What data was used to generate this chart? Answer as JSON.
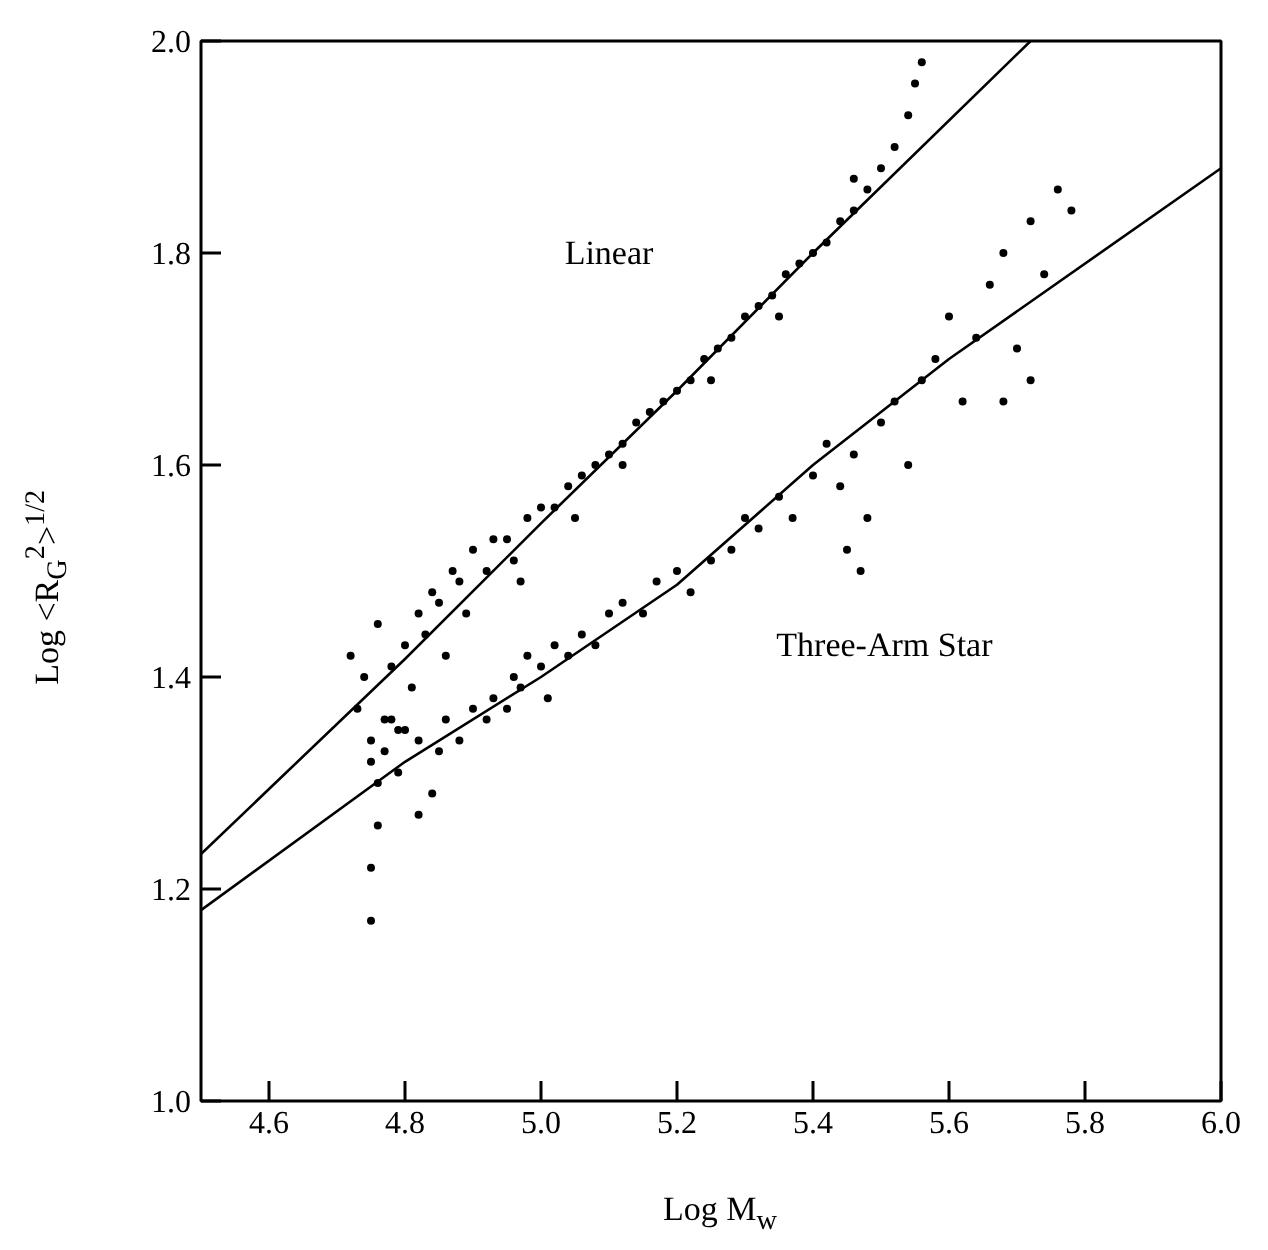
{
  "chart_data": {
    "type": "scatter",
    "xlabel": "Log M$_{w}$",
    "ylabel": "Log <R$_{G}$$^{2}$>$^{1/2}$",
    "xlim": [
      4.5,
      6.0
    ],
    "ylim": [
      1.0,
      2.0
    ],
    "xticks": [
      4.6,
      4.8,
      {
        "value": 5.0,
        "label": "5.0"
      },
      5.2,
      5.4,
      5.6,
      5.8,
      {
        "value": 6.0,
        "label": "6.0"
      }
    ],
    "yticks": [
      {
        "value": 1.0,
        "label": "1.0"
      },
      1.2,
      1.4,
      1.6,
      1.8,
      {
        "value": 2.0,
        "label": "2.0"
      }
    ],
    "grid": false,
    "marker": "circle",
    "annotations": [
      "Linear",
      "Three-Arm Star"
    ],
    "series": [
      {
        "color": "#000000",
        "x": [
          4.72,
          4.73,
          4.74,
          4.75,
          4.76,
          4.77,
          4.78,
          4.79,
          4.8,
          4.81,
          4.82,
          4.83,
          4.84,
          4.85,
          4.86,
          4.87,
          4.88,
          4.89,
          4.9,
          4.92,
          4.93,
          4.95,
          4.96,
          4.98,
          5.0,
          5.02,
          5.04,
          5.06,
          5.08,
          5.1,
          5.12,
          5.14,
          5.16,
          5.18,
          5.2,
          5.22,
          5.24,
          5.26,
          5.28,
          5.3,
          5.32,
          5.34,
          5.36,
          5.38,
          5.4,
          5.42,
          5.44,
          5.46,
          5.48,
          5.5,
          5.52,
          5.54,
          5.55,
          5.56,
          5.12,
          5.25,
          5.05,
          4.97,
          5.35,
          5.46
        ],
        "values": [
          1.42,
          1.37,
          1.4,
          1.32,
          1.45,
          1.36,
          1.41,
          1.35,
          1.43,
          1.39,
          1.46,
          1.44,
          1.48,
          1.47,
          1.42,
          1.5,
          1.49,
          1.46,
          1.52,
          1.5,
          1.53,
          1.53,
          1.51,
          1.55,
          1.56,
          1.56,
          1.58,
          1.59,
          1.6,
          1.61,
          1.62,
          1.64,
          1.65,
          1.66,
          1.67,
          1.68,
          1.7,
          1.71,
          1.72,
          1.74,
          1.75,
          1.76,
          1.78,
          1.79,
          1.8,
          1.81,
          1.83,
          1.84,
          1.86,
          1.88,
          1.9,
          1.93,
          1.96,
          1.98,
          1.6,
          1.68,
          1.55,
          1.49,
          1.74,
          1.87
        ]
      },
      {
        "color": "#000000",
        "x": [
          4.75,
          4.75,
          4.76,
          4.76,
          4.75,
          4.77,
          4.78,
          4.79,
          4.8,
          4.82,
          4.82,
          4.84,
          4.85,
          4.86,
          4.88,
          4.9,
          4.92,
          4.93,
          4.95,
          4.96,
          4.97,
          4.98,
          5.0,
          5.01,
          5.02,
          5.04,
          5.06,
          5.08,
          5.1,
          5.12,
          5.15,
          5.17,
          5.2,
          5.22,
          5.25,
          5.28,
          5.3,
          5.32,
          5.35,
          5.37,
          5.4,
          5.42,
          5.44,
          5.46,
          5.48,
          5.5,
          5.52,
          5.54,
          5.56,
          5.58,
          5.6,
          5.62,
          5.64,
          5.66,
          5.68,
          5.7,
          5.72,
          5.74,
          5.76,
          5.78,
          5.47,
          5.45,
          5.68,
          5.72
        ],
        "values": [
          1.17,
          1.22,
          1.26,
          1.3,
          1.34,
          1.33,
          1.36,
          1.31,
          1.35,
          1.27,
          1.34,
          1.29,
          1.33,
          1.36,
          1.34,
          1.37,
          1.36,
          1.38,
          1.37,
          1.4,
          1.39,
          1.42,
          1.41,
          1.38,
          1.43,
          1.42,
          1.44,
          1.43,
          1.46,
          1.47,
          1.46,
          1.49,
          1.5,
          1.48,
          1.51,
          1.52,
          1.55,
          1.54,
          1.57,
          1.55,
          1.59,
          1.62,
          1.58,
          1.61,
          1.55,
          1.64,
          1.66,
          1.6,
          1.68,
          1.7,
          1.74,
          1.66,
          1.72,
          1.77,
          1.8,
          1.71,
          1.83,
          1.78,
          1.86,
          1.84,
          1.5,
          1.52,
          1.66,
          1.68
        ]
      },
      {
        "type": "line",
        "color": "#000000",
        "marker": "none",
        "line_style": "solid",
        "x": [
          4.5,
          4.8,
          5.0,
          5.2,
          5.4,
          5.72
        ],
        "values": [
          1.233,
          1.417,
          1.545,
          1.67,
          1.8,
          2.0
        ]
      },
      {
        "type": "line",
        "color": "#000000",
        "marker": "none",
        "line_style": "solid",
        "x": [
          4.5,
          4.8,
          5.0,
          5.2,
          5.4,
          5.6,
          6.0
        ],
        "values": [
          1.18,
          1.32,
          1.4,
          1.487,
          1.6,
          1.7,
          1.88
        ]
      }
    ]
  }
}
